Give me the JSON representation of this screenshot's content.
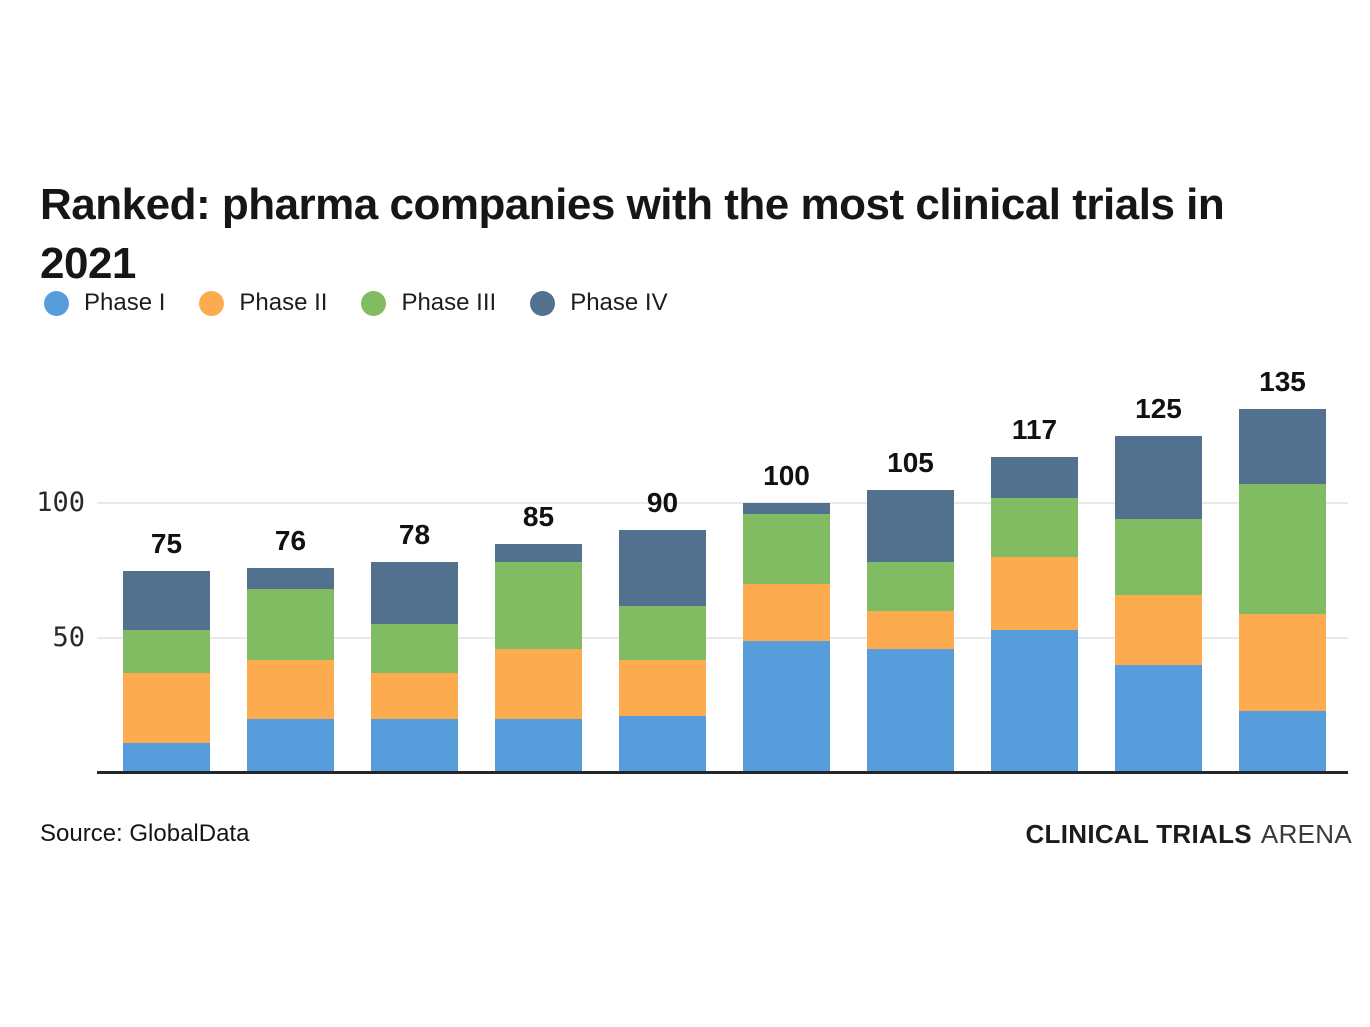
{
  "title": "Ranked: pharma companies with the most clinical trials in 2021",
  "source": "Source: GlobalData",
  "brand": {
    "bold": "CLINICAL TRIALS",
    "light": "ARENA"
  },
  "colors": {
    "phase1": "#589ddb",
    "phase2": "#fdab4f",
    "phase3": "#81bc62",
    "phase4": "#51718f",
    "gridline": "#e9e9e9",
    "axis": "#242629",
    "text": "#161616"
  },
  "chart_data": {
    "type": "bar",
    "stacked": true,
    "title": "Ranked: pharma companies with the most clinical trials in 2021",
    "xlabel": "",
    "ylabel": "",
    "categories": [
      "",
      "",
      "",
      "",
      "",
      "",
      "",
      "",
      "",
      ""
    ],
    "series": [
      {
        "name": "Phase I",
        "color": "#589ddb",
        "values": [
          11,
          20,
          20,
          20,
          21,
          49,
          46,
          53,
          40,
          23
        ]
      },
      {
        "name": "Phase II",
        "color": "#fdab4f",
        "values": [
          26,
          22,
          17,
          26,
          21,
          21,
          14,
          27,
          26,
          36
        ]
      },
      {
        "name": "Phase III",
        "color": "#81bc62",
        "values": [
          16,
          26,
          18,
          32,
          20,
          26,
          18,
          22,
          28,
          48
        ]
      },
      {
        "name": "Phase IV",
        "color": "#51718f",
        "values": [
          22,
          8,
          23,
          7,
          28,
          4,
          27,
          15,
          31,
          28
        ]
      }
    ],
    "totals": [
      75,
      76,
      78,
      85,
      90,
      100,
      105,
      117,
      125,
      135
    ],
    "yticks": [
      50,
      100
    ],
    "ylim": [
      0,
      140
    ],
    "grid": "horizontal",
    "legend_position": "top-left",
    "value_labels": "totals-above-bars"
  }
}
